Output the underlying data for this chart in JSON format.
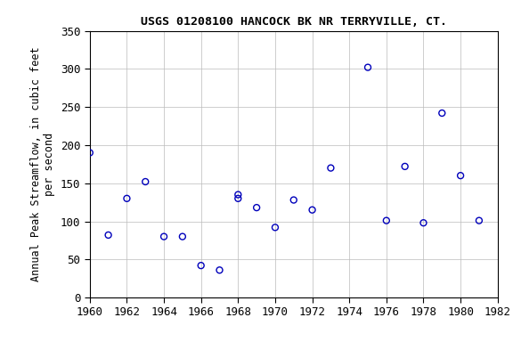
{
  "title": "USGS 01208100 HANCOCK BK NR TERRYVILLE, CT.",
  "ylabel_line1": "Annual Peak Streamflow, in cubic feet",
  "ylabel_line2": "per second",
  "xlim": [
    1960,
    1982
  ],
  "ylim": [
    0,
    350
  ],
  "xticks": [
    1960,
    1962,
    1964,
    1966,
    1968,
    1970,
    1972,
    1974,
    1976,
    1978,
    1980,
    1982
  ],
  "yticks": [
    0,
    50,
    100,
    150,
    200,
    250,
    300,
    350
  ],
  "marker_color": "#0000bb",
  "marker_size": 5,
  "grid_color": "#bbbbbb",
  "bg_color": "#ffffff",
  "title_fontsize": 9.5,
  "label_fontsize": 8.5,
  "tick_fontsize": 9,
  "data_points": [
    [
      1960,
      190
    ],
    [
      1961,
      82
    ],
    [
      1962,
      130
    ],
    [
      1963,
      152
    ],
    [
      1964,
      80
    ],
    [
      1965,
      80
    ],
    [
      1966,
      42
    ],
    [
      1967,
      36
    ],
    [
      1968,
      135
    ],
    [
      1968,
      130
    ],
    [
      1969,
      118
    ],
    [
      1970,
      92
    ],
    [
      1971,
      128
    ],
    [
      1972,
      115
    ],
    [
      1973,
      170
    ],
    [
      1975,
      302
    ],
    [
      1976,
      101
    ],
    [
      1977,
      172
    ],
    [
      1978,
      98
    ],
    [
      1979,
      242
    ],
    [
      1980,
      160
    ],
    [
      1981,
      101
    ]
  ]
}
